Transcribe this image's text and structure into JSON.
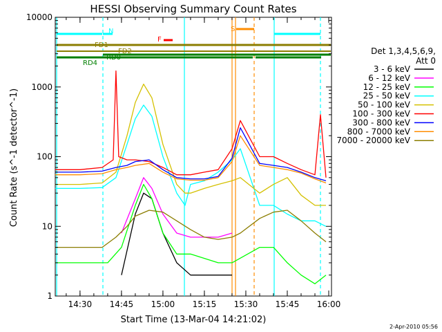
{
  "chart_data": {
    "type": "line",
    "title": "HESSI Observing Summary Count Rates",
    "xlabel": "Start Time (13-Mar-04 14:21:02)",
    "ylabel": "Count Rate (s^-1 detector^-1)",
    "yscale": "log",
    "ylim": [
      1,
      10000
    ],
    "xlim": [
      "14:21:02",
      "16:01:00"
    ],
    "x_ticks": [
      "14:30",
      "14:45",
      "15:00",
      "15:15",
      "15:30",
      "15:45",
      "16:00"
    ],
    "y_ticks": [
      "1",
      "10",
      "100",
      "1000",
      "10000"
    ],
    "legend_header": [
      "Det 1,3,4,5,6,9,",
      "Att 0"
    ],
    "legend_position": "right",
    "footer_date": "2-Apr-2010 05:56",
    "series": [
      {
        "name": "3 - 6 keV",
        "color": "#000000",
        "x": [
          "14:40",
          "14:45",
          "14:50",
          "14:53",
          "14:56",
          "15:00",
          "15:05",
          "15:10",
          "15:20",
          "15:25"
        ],
        "values": [
          null,
          2,
          15,
          30,
          25,
          8,
          3,
          2,
          2,
          2
        ]
      },
      {
        "name": "6 - 12 keV",
        "color": "#ff00ff",
        "x": [
          "14:40",
          "14:45",
          "14:50",
          "14:53",
          "14:56",
          "15:00",
          "15:05",
          "15:10",
          "15:20",
          "15:25"
        ],
        "values": [
          null,
          8,
          25,
          50,
          35,
          15,
          8,
          7,
          7,
          8
        ]
      },
      {
        "name": "12 - 25 keV",
        "color": "#00ff00",
        "x": [
          "14:21",
          "14:30",
          "14:40",
          "14:45",
          "14:50",
          "14:53",
          "14:56",
          "15:00",
          "15:05",
          "15:10",
          "15:20",
          "15:25",
          "15:35",
          "15:40",
          "15:45",
          "15:50",
          "15:55",
          "15:59"
        ],
        "values": [
          3,
          3,
          3,
          5,
          20,
          40,
          25,
          8,
          4,
          4,
          3,
          3,
          5,
          5,
          3,
          2,
          1.5,
          2
        ]
      },
      {
        "name": "25 - 50 keV",
        "color": "#00ffff",
        "x": [
          "14:21",
          "14:30",
          "14:38",
          "14:43",
          "14:47",
          "14:50",
          "14:53",
          "14:56",
          "15:00",
          "15:05",
          "15:08",
          "15:10",
          "15:15",
          "15:20",
          "15:25",
          "15:28",
          "15:35",
          "15:40",
          "15:45",
          "15:50",
          "15:55",
          "15:59"
        ],
        "values": [
          35,
          35,
          36,
          50,
          150,
          350,
          550,
          380,
          100,
          30,
          20,
          40,
          45,
          60,
          90,
          130,
          20,
          20,
          15,
          12,
          12,
          10
        ]
      },
      {
        "name": "50 - 100 keV",
        "color": "#d4c000",
        "x": [
          "14:21",
          "14:30",
          "14:38",
          "14:43",
          "14:47",
          "14:50",
          "14:53",
          "14:56",
          "15:00",
          "15:05",
          "15:08",
          "15:10",
          "15:15",
          "15:20",
          "15:25",
          "15:28",
          "15:35",
          "15:40",
          "15:45",
          "15:50",
          "15:55",
          "15:59"
        ],
        "values": [
          40,
          40,
          42,
          60,
          200,
          600,
          1100,
          700,
          150,
          40,
          30,
          30,
          35,
          40,
          45,
          50,
          30,
          40,
          50,
          28,
          20,
          20
        ]
      },
      {
        "name": "100 - 300 keV",
        "color": "#ff0000",
        "x": [
          "14:21",
          "14:30",
          "14:38",
          "14:42",
          "14:43",
          "14:44",
          "14:47",
          "14:50",
          "14:55",
          "15:00",
          "15:05",
          "15:10",
          "15:15",
          "15:20",
          "15:25",
          "15:28",
          "15:35",
          "15:40",
          "15:45",
          "15:50",
          "15:55",
          "15:57",
          "15:59"
        ],
        "values": [
          65,
          65,
          70,
          90,
          1700,
          100,
          90,
          90,
          85,
          70,
          55,
          55,
          60,
          65,
          130,
          330,
          100,
          100,
          80,
          65,
          55,
          400,
          50
        ]
      },
      {
        "name": "300 - 800 keV",
        "color": "#0000ff",
        "x": [
          "14:21",
          "14:30",
          "14:38",
          "14:43",
          "14:47",
          "14:50",
          "14:55",
          "15:00",
          "15:05",
          "15:10",
          "15:15",
          "15:20",
          "15:25",
          "15:28",
          "15:35",
          "15:40",
          "15:45",
          "15:50",
          "15:55",
          "15:59"
        ],
        "values": [
          60,
          60,
          62,
          70,
          75,
          85,
          90,
          65,
          50,
          48,
          48,
          52,
          95,
          260,
          80,
          75,
          70,
          60,
          50,
          45
        ]
      },
      {
        "name": "800 - 7000 keV",
        "color": "#ff8c00",
        "x": [
          "14:21",
          "14:30",
          "14:38",
          "14:43",
          "14:47",
          "14:50",
          "14:55",
          "15:00",
          "15:05",
          "15:10",
          "15:15",
          "15:20",
          "15:25",
          "15:28",
          "15:35",
          "15:40",
          "15:45",
          "15:50",
          "15:55",
          "15:59"
        ],
        "values": [
          55,
          55,
          57,
          65,
          70,
          75,
          80,
          60,
          48,
          46,
          46,
          50,
          85,
          200,
          75,
          70,
          65,
          58,
          48,
          42
        ]
      },
      {
        "name": "7000 - 20000 keV",
        "color": "#8b7d00",
        "x": [
          "14:21",
          "14:30",
          "14:38",
          "14:43",
          "14:47",
          "14:50",
          "14:55",
          "15:00",
          "15:05",
          "15:10",
          "15:15",
          "15:20",
          "15:25",
          "15:28",
          "15:35",
          "15:40",
          "15:45",
          "15:50",
          "15:55",
          "15:59"
        ],
        "values": [
          5,
          5,
          5,
          7,
          10,
          14,
          17,
          16,
          12,
          9,
          7,
          6.5,
          7,
          8,
          13,
          16,
          17,
          12,
          8,
          6
        ]
      }
    ],
    "flags": [
      {
        "label": "N",
        "color": "#00ffff"
      },
      {
        "label": "F",
        "color": "#ff0000"
      },
      {
        "label": "S",
        "color": "#ff8c00"
      },
      {
        "label": "FD1",
        "color": "#8b7d00"
      },
      {
        "label": "FD2",
        "color": "#8b7d00"
      },
      {
        "label": "RD0",
        "color": "#007f00"
      },
      {
        "label": "RD4",
        "color": "#007f00"
      }
    ]
  }
}
